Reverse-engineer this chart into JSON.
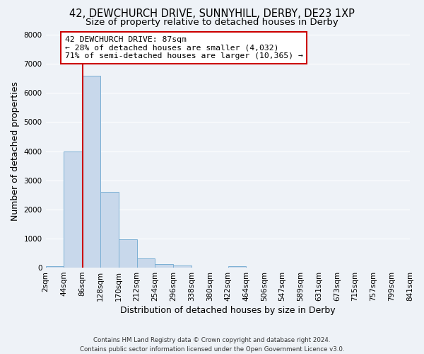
{
  "title": "42, DEWCHURCH DRIVE, SUNNYHILL, DERBY, DE23 1XP",
  "subtitle": "Size of property relative to detached houses in Derby",
  "xlabel": "Distribution of detached houses by size in Derby",
  "ylabel": "Number of detached properties",
  "footer1": "Contains HM Land Registry data © Crown copyright and database right 2024.",
  "footer2": "Contains public sector information licensed under the Open Government Licence v3.0.",
  "bar_edges": [
    2,
    44,
    86,
    128,
    170,
    212,
    254,
    296,
    338,
    380,
    422,
    464,
    506,
    547,
    589,
    631,
    673,
    715,
    757,
    799,
    841
  ],
  "bar_heights": [
    60,
    4000,
    6600,
    2600,
    970,
    320,
    120,
    70,
    0,
    0,
    60,
    0,
    0,
    0,
    0,
    0,
    0,
    0,
    0,
    0
  ],
  "bar_color": "#c8d8eb",
  "bar_edge_color": "#7bafd4",
  "vline_x": 87,
  "vline_color": "#cc0000",
  "annotation_title": "42 DEWCHURCH DRIVE: 87sqm",
  "annotation_line1": "← 28% of detached houses are smaller (4,032)",
  "annotation_line2": "71% of semi-detached houses are larger (10,365) →",
  "annotation_box_color": "#ffffff",
  "annotation_box_edge": "#cc0000",
  "ylim": [
    0,
    8000
  ],
  "yticks": [
    0,
    1000,
    2000,
    3000,
    4000,
    5000,
    6000,
    7000,
    8000
  ],
  "xtick_labels": [
    "2sqm",
    "44sqm",
    "86sqm",
    "128sqm",
    "170sqm",
    "212sqm",
    "254sqm",
    "296sqm",
    "338sqm",
    "380sqm",
    "422sqm",
    "464sqm",
    "506sqm",
    "547sqm",
    "589sqm",
    "631sqm",
    "673sqm",
    "715sqm",
    "757sqm",
    "799sqm",
    "841sqm"
  ],
  "bg_color": "#eef2f7",
  "plot_bg_color": "#eef2f7",
  "grid_color": "#ffffff",
  "title_fontsize": 10.5,
  "subtitle_fontsize": 9.5,
  "label_fontsize": 9,
  "tick_fontsize": 7.5,
  "footer_fontsize": 6.2
}
